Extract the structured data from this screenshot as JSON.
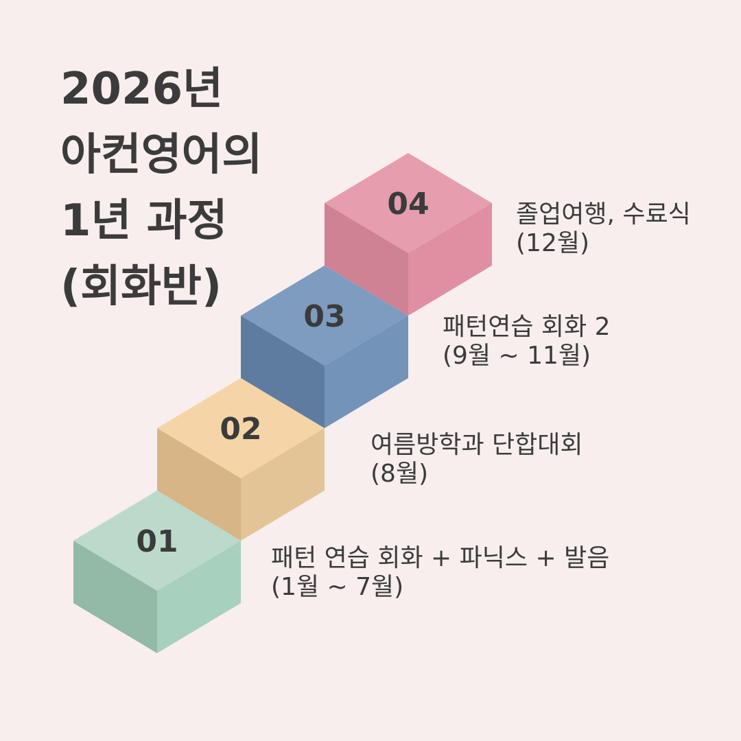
{
  "title": {
    "lines": [
      "2026년",
      "아컨영어의",
      "1년 과정",
      "(회화반)"
    ]
  },
  "background_color": "#f8eeee",
  "steps": [
    {
      "number": "01",
      "line1": "패턴 연습 회화 + 파닉스 + 발음",
      "line2": "(1월 ~ 7월)",
      "colors": {
        "top": "#bcdacb",
        "left": "#93b9a7",
        "right": "#a8d0bf"
      }
    },
    {
      "number": "02",
      "line1": "여름방학과 단합대회",
      "line2": "(8월)",
      "colors": {
        "top": "#f5d5a8",
        "left": "#d8b586",
        "right": "#e3c496"
      }
    },
    {
      "number": "03",
      "line1": "패턴연습 회화 2",
      "line2": "(9월 ~ 11월)",
      "colors": {
        "top": "#7e9cbf",
        "left": "#5e7ca0",
        "right": "#7393b8"
      }
    },
    {
      "number": "04",
      "line1": "졸업여행, 수료식",
      "line2": "(12월)",
      "colors": {
        "top": "#e69dad",
        "left": "#cf8293",
        "right": "#df8fa1"
      }
    }
  ]
}
